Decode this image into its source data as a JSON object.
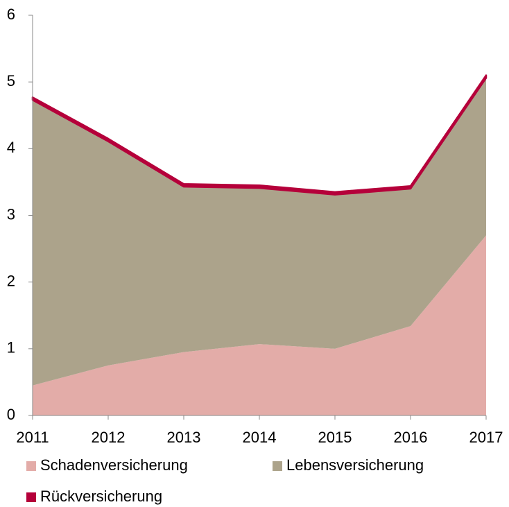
{
  "chart_data": {
    "type": "area",
    "stacked": true,
    "x": [
      2011,
      2012,
      2013,
      2014,
      2015,
      2016,
      2017
    ],
    "xlim": [
      2011,
      2017
    ],
    "xticks": [
      2011,
      2012,
      2013,
      2014,
      2015,
      2016,
      2017
    ],
    "ylim": [
      0,
      6
    ],
    "yticks": [
      0,
      1,
      2,
      3,
      4,
      5,
      6
    ],
    "grid": false,
    "series": [
      {
        "name": "Schadenversicherung",
        "color": "#e3aca8",
        "values": [
          0.45,
          0.75,
          0.95,
          1.07,
          1.0,
          1.34,
          2.7
        ]
      },
      {
        "name": "Lebensversicherung",
        "color": "#aca38b",
        "values": [
          4.28,
          3.36,
          2.48,
          2.34,
          2.31,
          2.06,
          2.36
        ]
      },
      {
        "name": "Rückversicherung",
        "color": "#b5003a",
        "values": [
          0.04,
          0.04,
          0.04,
          0.04,
          0.04,
          0.04,
          0.04
        ]
      }
    ]
  }
}
